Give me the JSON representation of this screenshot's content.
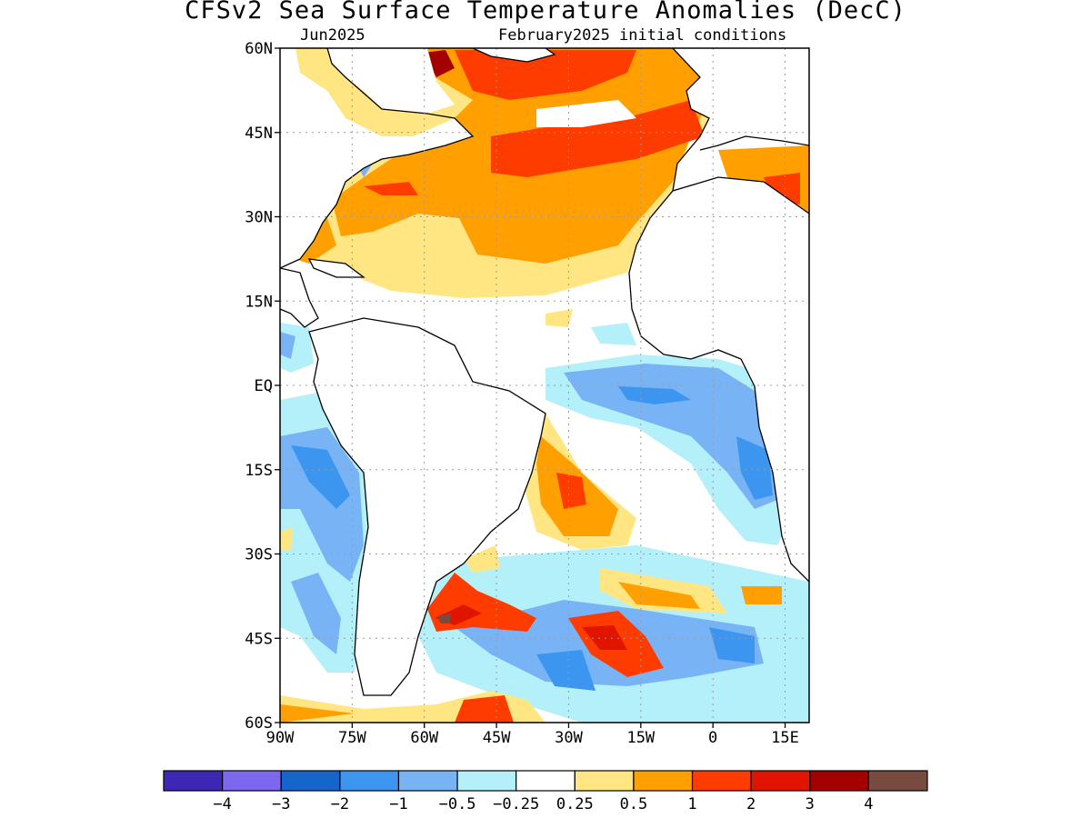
{
  "header": {
    "title": "CFSv2 Sea Surface Temperature Anomalies (DecC)",
    "valid_month": "Jun2025",
    "initial_conditions": "February2025 initial conditions"
  },
  "map": {
    "region": "Atlantic Ocean",
    "lon_range": [
      -90,
      20
    ],
    "lat_range": [
      -60,
      60
    ],
    "lat_ticks": [
      {
        "value": 60,
        "label": "60N"
      },
      {
        "value": 45,
        "label": "45N"
      },
      {
        "value": 30,
        "label": "30N"
      },
      {
        "value": 15,
        "label": "15N"
      },
      {
        "value": 0,
        "label": "EQ"
      },
      {
        "value": -15,
        "label": "15S"
      },
      {
        "value": -30,
        "label": "30S"
      },
      {
        "value": -45,
        "label": "45S"
      },
      {
        "value": -60,
        "label": "60S"
      }
    ],
    "lon_ticks": [
      {
        "value": -90,
        "label": "90W"
      },
      {
        "value": -75,
        "label": "75W"
      },
      {
        "value": -60,
        "label": "60W"
      },
      {
        "value": -45,
        "label": "45W"
      },
      {
        "value": -30,
        "label": "30W"
      },
      {
        "value": -15,
        "label": "15W"
      },
      {
        "value": 0,
        "label": "0"
      },
      {
        "value": 15,
        "label": "15E"
      }
    ],
    "grid": true
  },
  "colorbar": {
    "colors": [
      "#3c28b4",
      "#7b68ee",
      "#1466cc",
      "#3c96f0",
      "#78b4f5",
      "#b4f0fa",
      "#ffffff",
      "#ffe682",
      "#ffa000",
      "#ff3c00",
      "#e11400",
      "#a50000",
      "#784b41"
    ],
    "labels": [
      "−4",
      "−3",
      "−2",
      "−1",
      "−0.5",
      "−0.25",
      "0.25",
      "0.5",
      "1",
      "2",
      "3",
      "4"
    ]
  }
}
